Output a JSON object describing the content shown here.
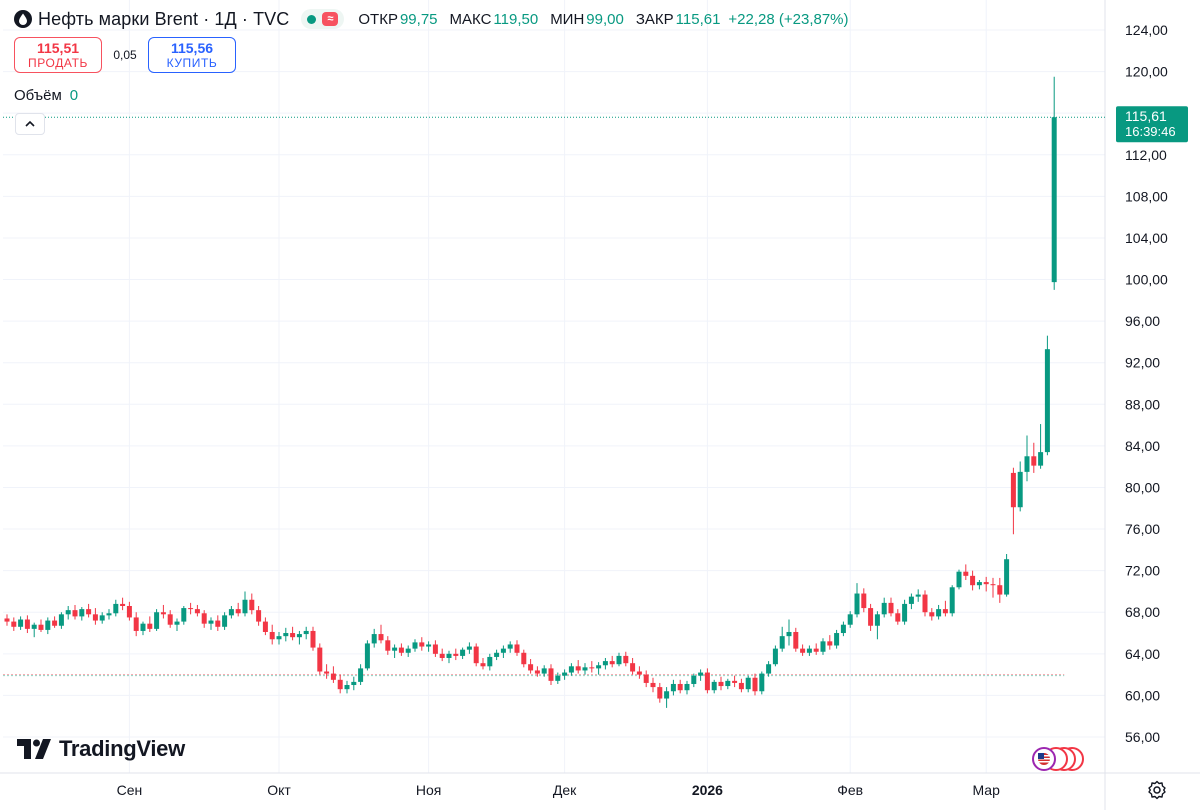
{
  "legend": {
    "title": "Нефть марки Brent · 1Д · TVC",
    "ohlc": [
      {
        "label": "ОТКР",
        "value": "99,75"
      },
      {
        "label": "МАКС",
        "value": "119,50"
      },
      {
        "label": "МИН",
        "value": "99,00"
      },
      {
        "label": "ЗАКР",
        "value": "115,61"
      }
    ],
    "change": "+22,28 (+23,87%)"
  },
  "trade": {
    "sell_price": "115,51",
    "sell_label": "ПРОДАТЬ",
    "spread": "0,05",
    "buy_price": "115,56",
    "buy_label": "КУПИТЬ"
  },
  "volume": {
    "label": "Объём",
    "value": "0"
  },
  "price_tag": {
    "price": "115,61",
    "countdown": "16:39:46"
  },
  "branding": {
    "name": "TradingView"
  },
  "colors": {
    "up": "#089981",
    "down": "#f23645",
    "grid": "#f0f3fa",
    "axis_text": "#131722"
  },
  "chart_data": {
    "type": "candlestick",
    "title": "Нефть марки Brent · 1Д · TVC",
    "y_axis": {
      "ticks": [
        56,
        60,
        64,
        68,
        72,
        76,
        80,
        84,
        88,
        92,
        96,
        100,
        104,
        108,
        112,
        116,
        120,
        124
      ],
      "tick_labels": [
        "56,00",
        "60,00",
        "64,00",
        "68,00",
        "72,00",
        "76,00",
        "80,00",
        "84,00",
        "88,00",
        "92,00",
        "96,00",
        "100,00",
        "104,00",
        "108,00",
        "112,00",
        "116,00",
        "120,00",
        "124,00"
      ],
      "range": [
        52.5,
        126
      ]
    },
    "x_axis": {
      "labels": [
        {
          "text": "Сен",
          "bar": 18
        },
        {
          "text": "Окт",
          "bar": 40
        },
        {
          "text": "Ноя",
          "bar": 62
        },
        {
          "text": "Дек",
          "bar": 82
        },
        {
          "text": "2026",
          "bar": 103,
          "bold": true
        },
        {
          "text": "Фев",
          "bar": 124
        },
        {
          "text": "Мар",
          "bar": 144
        }
      ]
    },
    "last_price": 115.61,
    "reference_price": 62.0,
    "candles": [
      [
        67.4,
        67.8,
        66.7,
        67.1
      ],
      [
        67.1,
        67.5,
        66.2,
        66.6
      ],
      [
        66.6,
        67.6,
        66.3,
        67.3
      ],
      [
        67.3,
        67.7,
        66.0,
        66.4
      ],
      [
        66.4,
        67.0,
        65.6,
        66.8
      ],
      [
        66.8,
        67.3,
        66.1,
        66.3
      ],
      [
        66.3,
        67.5,
        65.9,
        67.2
      ],
      [
        67.2,
        67.6,
        66.5,
        66.7
      ],
      [
        66.7,
        68.0,
        66.4,
        67.8
      ],
      [
        67.8,
        68.6,
        67.3,
        68.2
      ],
      [
        68.2,
        68.7,
        67.3,
        67.6
      ],
      [
        67.6,
        68.5,
        67.2,
        68.3
      ],
      [
        68.3,
        68.8,
        67.5,
        67.8
      ],
      [
        67.8,
        68.4,
        66.8,
        67.2
      ],
      [
        67.2,
        68.0,
        66.9,
        67.7
      ],
      [
        67.7,
        68.3,
        67.3,
        67.9
      ],
      [
        67.9,
        69.2,
        67.6,
        68.8
      ],
      [
        68.8,
        69.4,
        68.2,
        68.6
      ],
      [
        68.6,
        69.0,
        67.2,
        67.5
      ],
      [
        67.5,
        68.0,
        65.7,
        66.2
      ],
      [
        66.2,
        67.1,
        65.8,
        66.9
      ],
      [
        66.9,
        67.6,
        66.1,
        66.4
      ],
      [
        66.4,
        68.3,
        66.2,
        68.0
      ],
      [
        68.0,
        68.7,
        67.4,
        67.8
      ],
      [
        67.8,
        68.2,
        66.5,
        66.8
      ],
      [
        66.8,
        67.4,
        66.2,
        67.1
      ],
      [
        67.1,
        68.6,
        66.8,
        68.4
      ],
      [
        68.4,
        68.9,
        67.8,
        68.3
      ],
      [
        68.3,
        68.7,
        67.6,
        67.9
      ],
      [
        67.9,
        68.2,
        66.5,
        66.9
      ],
      [
        66.9,
        67.5,
        66.3,
        67.2
      ],
      [
        67.2,
        67.7,
        66.2,
        66.6
      ],
      [
        66.6,
        68.0,
        66.3,
        67.7
      ],
      [
        67.7,
        68.6,
        67.4,
        68.3
      ],
      [
        68.3,
        68.9,
        67.6,
        67.9
      ],
      [
        67.9,
        70.0,
        67.6,
        69.2
      ],
      [
        69.2,
        69.8,
        67.8,
        68.2
      ],
      [
        68.2,
        68.6,
        66.7,
        67.1
      ],
      [
        67.1,
        67.5,
        65.8,
        66.1
      ],
      [
        66.1,
        66.8,
        64.9,
        65.4
      ],
      [
        65.4,
        66.1,
        64.9,
        65.7
      ],
      [
        65.7,
        66.5,
        65.2,
        66.0
      ],
      [
        66.0,
        66.6,
        65.3,
        65.6
      ],
      [
        65.6,
        66.2,
        64.9,
        65.9
      ],
      [
        65.9,
        66.6,
        65.4,
        66.2
      ],
      [
        66.2,
        66.6,
        64.3,
        64.6
      ],
      [
        64.6,
        65.0,
        62.0,
        62.3
      ],
      [
        62.3,
        63.0,
        61.6,
        62.1
      ],
      [
        62.1,
        62.8,
        61.2,
        61.5
      ],
      [
        61.5,
        62.0,
        60.2,
        60.6
      ],
      [
        60.6,
        61.4,
        60.2,
        61.0
      ],
      [
        61.0,
        61.8,
        60.5,
        61.3
      ],
      [
        61.3,
        63.0,
        61.0,
        62.6
      ],
      [
        62.6,
        65.3,
        62.4,
        65.0
      ],
      [
        65.0,
        66.4,
        64.6,
        65.9
      ],
      [
        65.9,
        66.8,
        65.0,
        65.3
      ],
      [
        65.3,
        65.7,
        63.9,
        64.3
      ],
      [
        64.3,
        64.9,
        63.6,
        64.6
      ],
      [
        64.6,
        65.0,
        63.8,
        64.1
      ],
      [
        64.1,
        64.8,
        63.7,
        64.5
      ],
      [
        64.5,
        65.4,
        64.2,
        65.1
      ],
      [
        65.1,
        65.6,
        64.3,
        64.7
      ],
      [
        64.7,
        65.2,
        64.2,
        64.9
      ],
      [
        64.9,
        65.3,
        63.7,
        64.0
      ],
      [
        64.0,
        64.5,
        63.3,
        63.6
      ],
      [
        63.6,
        64.3,
        63.1,
        64.0
      ],
      [
        64.0,
        64.5,
        63.4,
        63.8
      ],
      [
        63.8,
        64.6,
        63.5,
        64.4
      ],
      [
        64.4,
        65.1,
        64.0,
        64.7
      ],
      [
        64.7,
        65.0,
        62.8,
        63.1
      ],
      [
        63.1,
        63.6,
        62.5,
        62.8
      ],
      [
        62.8,
        64.0,
        62.4,
        63.7
      ],
      [
        63.7,
        64.4,
        63.4,
        64.1
      ],
      [
        64.1,
        64.8,
        63.6,
        64.5
      ],
      [
        64.5,
        65.2,
        64.1,
        64.9
      ],
      [
        64.9,
        65.3,
        63.8,
        64.1
      ],
      [
        64.1,
        64.4,
        62.7,
        63.0
      ],
      [
        63.0,
        63.5,
        62.1,
        62.4
      ],
      [
        62.4,
        62.8,
        61.8,
        62.1
      ],
      [
        62.1,
        62.9,
        61.8,
        62.6
      ],
      [
        62.6,
        63.0,
        61.0,
        61.4
      ],
      [
        61.4,
        62.2,
        61.1,
        61.9
      ],
      [
        61.9,
        62.5,
        61.5,
        62.2
      ],
      [
        62.2,
        63.1,
        61.9,
        62.8
      ],
      [
        62.8,
        63.4,
        62.1,
        62.4
      ],
      [
        62.4,
        63.1,
        62.0,
        62.7
      ],
      [
        62.7,
        63.3,
        62.2,
        62.6
      ],
      [
        62.6,
        63.2,
        62.0,
        62.9
      ],
      [
        62.9,
        63.6,
        62.5,
        63.3
      ],
      [
        63.3,
        63.8,
        62.7,
        63.0
      ],
      [
        63.0,
        64.1,
        62.8,
        63.8
      ],
      [
        63.8,
        64.2,
        62.8,
        63.1
      ],
      [
        63.1,
        63.6,
        62.0,
        62.3
      ],
      [
        62.3,
        62.8,
        61.6,
        62.0
      ],
      [
        62.0,
        62.4,
        60.8,
        61.2
      ],
      [
        61.2,
        61.7,
        60.3,
        60.8
      ],
      [
        60.8,
        61.2,
        59.3,
        59.7
      ],
      [
        59.7,
        60.8,
        58.8,
        60.4
      ],
      [
        60.4,
        61.5,
        60.0,
        61.1
      ],
      [
        61.1,
        61.5,
        60.2,
        60.5
      ],
      [
        60.5,
        61.4,
        60.1,
        61.1
      ],
      [
        61.1,
        62.1,
        60.8,
        61.9
      ],
      [
        61.9,
        62.5,
        61.4,
        62.2
      ],
      [
        62.2,
        62.6,
        60.2,
        60.5
      ],
      [
        60.5,
        61.5,
        60.2,
        61.3
      ],
      [
        61.3,
        61.8,
        60.5,
        60.9
      ],
      [
        60.9,
        61.6,
        60.6,
        61.4
      ],
      [
        61.4,
        61.9,
        60.8,
        61.2
      ],
      [
        61.2,
        61.6,
        60.3,
        60.6
      ],
      [
        60.6,
        61.9,
        60.3,
        61.7
      ],
      [
        61.7,
        62.1,
        60.0,
        60.4
      ],
      [
        60.4,
        62.3,
        60.1,
        62.1
      ],
      [
        62.1,
        63.3,
        61.8,
        63.0
      ],
      [
        63.0,
        64.8,
        62.8,
        64.5
      ],
      [
        64.5,
        66.6,
        64.2,
        65.7
      ],
      [
        65.7,
        67.3,
        64.8,
        66.1
      ],
      [
        66.1,
        66.5,
        64.2,
        64.5
      ],
      [
        64.5,
        64.9,
        63.8,
        64.1
      ],
      [
        64.1,
        64.8,
        63.8,
        64.5
      ],
      [
        64.5,
        65.0,
        63.9,
        64.2
      ],
      [
        64.2,
        65.5,
        63.9,
        65.2
      ],
      [
        65.2,
        65.8,
        64.4,
        64.8
      ],
      [
        64.8,
        66.3,
        64.5,
        66.0
      ],
      [
        66.0,
        67.1,
        65.7,
        66.8
      ],
      [
        66.8,
        68.1,
        66.5,
        67.8
      ],
      [
        67.8,
        70.8,
        67.5,
        69.8
      ],
      [
        69.8,
        70.3,
        68.0,
        68.4
      ],
      [
        68.4,
        68.8,
        66.2,
        66.7
      ],
      [
        66.7,
        68.1,
        65.4,
        67.8
      ],
      [
        67.8,
        69.4,
        67.5,
        68.9
      ],
      [
        68.9,
        69.4,
        67.6,
        67.9
      ],
      [
        67.9,
        68.3,
        66.8,
        67.1
      ],
      [
        67.1,
        69.2,
        66.8,
        68.8
      ],
      [
        68.8,
        69.8,
        68.3,
        69.5
      ],
      [
        69.5,
        70.2,
        69.0,
        69.7
      ],
      [
        69.7,
        70.1,
        67.6,
        68.0
      ],
      [
        68.0,
        68.4,
        67.2,
        67.6
      ],
      [
        67.6,
        68.7,
        67.3,
        68.3
      ],
      [
        68.3,
        69.1,
        67.6,
        67.9
      ],
      [
        67.9,
        70.6,
        67.6,
        70.4
      ],
      [
        70.4,
        72.1,
        70.2,
        71.9
      ],
      [
        71.9,
        72.6,
        71.1,
        71.5
      ],
      [
        71.5,
        72.0,
        70.1,
        70.6
      ],
      [
        70.6,
        71.1,
        70.2,
        70.9
      ],
      [
        70.9,
        71.4,
        70.0,
        70.7
      ],
      [
        70.7,
        71.3,
        69.4,
        70.6
      ],
      [
        70.6,
        71.3,
        68.9,
        69.7
      ],
      [
        69.7,
        73.6,
        69.5,
        73.1
      ],
      [
        81.4,
        81.9,
        75.5,
        78.1
      ],
      [
        78.1,
        82.5,
        77.7,
        81.5
      ],
      [
        81.5,
        85.0,
        80.6,
        83.0
      ],
      [
        83.0,
        84.3,
        81.4,
        82.1
      ],
      [
        82.1,
        86.1,
        81.8,
        83.4
      ],
      [
        83.4,
        94.6,
        83.1,
        93.3
      ],
      [
        99.75,
        119.5,
        99.0,
        115.61
      ]
    ]
  }
}
